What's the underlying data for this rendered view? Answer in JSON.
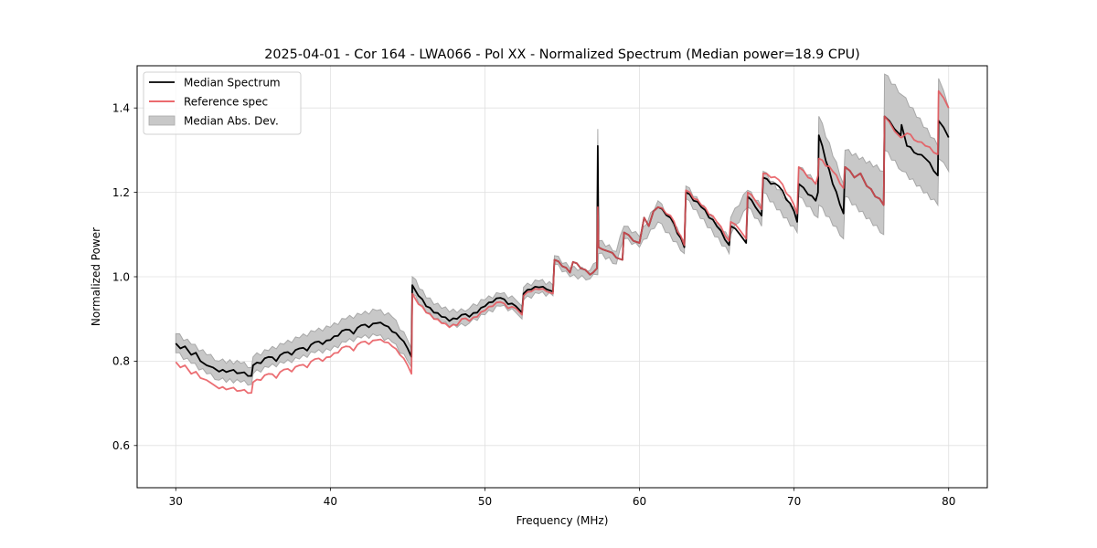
{
  "chart_data": {
    "type": "line",
    "title": "2025-04-01 - Cor 164 - LWA066 - Pol XX - Normalized Spectrum (Median power=18.9 CPU)",
    "xlabel": "Frequency (MHz)",
    "ylabel": "Normalized Power",
    "xlim": [
      27.5,
      82.5
    ],
    "ylim": [
      0.5,
      1.5
    ],
    "xticks": [
      30,
      40,
      50,
      60,
      70,
      80
    ],
    "xtick_labels": [
      "30",
      "40",
      "50",
      "60",
      "70",
      "80"
    ],
    "yticks": [
      0.6,
      0.8,
      1.0,
      1.2,
      1.4
    ],
    "ytick_labels": [
      "0.6",
      "0.8",
      "1.0",
      "1.2",
      "1.4"
    ],
    "grid": true,
    "legend": {
      "placement": "top-left",
      "entries": [
        {
          "label": "Median Spectrum",
          "kind": "line",
          "color": "#000000"
        },
        {
          "label": "Reference spec",
          "kind": "line",
          "color": "#e8555a"
        },
        {
          "label": "Median Abs. Dev.",
          "kind": "fill",
          "color": "#c8c8c8"
        }
      ]
    },
    "colors": {
      "median": "#000000",
      "reference": "#e8555a",
      "overlap": "#8b0000",
      "mad_fill": "#c8c8c8",
      "mad_edge": "#a8a8a8",
      "grid": "#e0e0e0"
    },
    "series": [
      {
        "name": "Median Spectrum",
        "x": [
          30.0,
          30.3,
          30.6,
          31.0,
          31.3,
          31.6,
          32.0,
          32.4,
          32.8,
          33.5,
          34.2,
          34.9,
          35.0,
          35.5,
          36.0,
          36.5,
          37.0,
          37.5,
          38.0,
          38.5,
          39.0,
          39.5,
          40.0,
          40.5,
          41.0,
          41.5,
          42.0,
          42.5,
          43.0,
          43.5,
          44.0,
          44.5,
          45.0,
          45.25,
          45.3,
          45.7,
          46.2,
          46.7,
          47.2,
          47.7,
          48.2,
          48.5,
          49.0,
          49.5,
          50.0,
          50.5,
          51.0,
          51.5,
          52.0,
          52.4,
          52.5,
          53.0,
          53.5,
          54.0,
          54.4,
          54.5,
          55.0,
          55.5,
          55.7,
          56.2,
          56.8,
          57.0,
          57.25,
          57.3,
          57.35,
          57.6,
          58.0,
          58.5,
          58.9,
          59.0,
          59.6,
          60.0,
          60.3,
          60.6,
          60.9,
          61.2,
          62.0,
          62.9,
          63.0,
          64.0,
          65.0,
          65.8,
          65.9,
          66.5,
          66.9,
          67.0,
          67.5,
          67.9,
          68.0,
          68.5,
          69.0,
          70.0,
          70.2,
          70.3,
          70.9,
          71.4,
          71.55,
          71.6,
          72.5,
          73.2,
          73.3,
          73.9,
          74.3,
          74.7,
          75.8,
          75.85,
          76.5,
          76.9,
          76.95,
          77.3,
          78.0,
          78.5,
          79.3,
          79.35,
          80.0
        ],
        "values": [
          0.842,
          0.83,
          0.835,
          0.815,
          0.82,
          0.8,
          0.79,
          0.785,
          0.775,
          0.777,
          0.772,
          0.765,
          0.79,
          0.795,
          0.81,
          0.8,
          0.82,
          0.815,
          0.83,
          0.825,
          0.845,
          0.84,
          0.85,
          0.86,
          0.875,
          0.865,
          0.885,
          0.88,
          0.89,
          0.885,
          0.87,
          0.855,
          0.83,
          0.81,
          0.98,
          0.955,
          0.93,
          0.915,
          0.905,
          0.895,
          0.9,
          0.91,
          0.905,
          0.915,
          0.93,
          0.94,
          0.95,
          0.935,
          0.93,
          0.915,
          0.96,
          0.97,
          0.975,
          0.97,
          0.965,
          1.04,
          1.025,
          1.01,
          1.035,
          1.02,
          1.005,
          1.01,
          1.02,
          1.31,
          1.07,
          1.065,
          1.06,
          1.045,
          1.04,
          1.105,
          1.085,
          1.08,
          1.14,
          1.12,
          1.155,
          1.165,
          1.14,
          1.07,
          1.2,
          1.165,
          1.12,
          1.075,
          1.12,
          1.1,
          1.08,
          1.19,
          1.165,
          1.145,
          1.235,
          1.22,
          1.215,
          1.155,
          1.13,
          1.22,
          1.195,
          1.18,
          1.2,
          1.335,
          1.22,
          1.15,
          1.26,
          1.235,
          1.245,
          1.215,
          1.17,
          1.38,
          1.35,
          1.335,
          1.36,
          1.31,
          1.29,
          1.28,
          1.24,
          1.37,
          1.33
        ]
      },
      {
        "name": "Reference spec",
        "x": [
          30.0,
          30.3,
          30.6,
          31.0,
          31.3,
          31.6,
          32.0,
          32.4,
          32.8,
          33.5,
          34.2,
          34.9,
          35.0,
          35.5,
          36.0,
          36.5,
          37.0,
          37.5,
          38.0,
          38.5,
          39.0,
          39.5,
          40.0,
          40.5,
          41.0,
          41.5,
          42.0,
          42.5,
          43.0,
          43.5,
          44.0,
          44.5,
          45.0,
          45.25,
          45.3,
          45.7,
          46.2,
          46.7,
          47.2,
          47.7,
          48.2,
          48.5,
          49.0,
          49.5,
          50.0,
          50.5,
          51.0,
          51.5,
          52.0,
          52.4,
          52.5,
          53.0,
          53.5,
          54.0,
          54.4,
          54.5,
          55.0,
          55.5,
          55.7,
          56.2,
          56.8,
          57.0,
          57.25,
          57.3,
          57.35,
          57.6,
          58.0,
          58.5,
          58.9,
          59.0,
          59.6,
          60.0,
          60.3,
          60.6,
          60.9,
          61.2,
          62.0,
          62.9,
          63.0,
          64.0,
          65.0,
          65.8,
          65.9,
          66.5,
          66.9,
          67.0,
          67.5,
          67.9,
          68.0,
          68.5,
          69.0,
          70.0,
          70.2,
          70.3,
          70.9,
          71.4,
          71.55,
          71.6,
          72.5,
          73.2,
          73.3,
          73.9,
          74.3,
          74.7,
          75.8,
          75.85,
          76.5,
          76.9,
          76.95,
          77.3,
          78.0,
          78.5,
          79.3,
          79.35,
          80.0
        ],
        "values": [
          0.798,
          0.785,
          0.79,
          0.77,
          0.775,
          0.76,
          0.755,
          0.745,
          0.735,
          0.735,
          0.73,
          0.725,
          0.75,
          0.755,
          0.77,
          0.76,
          0.78,
          0.775,
          0.79,
          0.785,
          0.805,
          0.8,
          0.81,
          0.82,
          0.835,
          0.825,
          0.845,
          0.84,
          0.85,
          0.845,
          0.835,
          0.815,
          0.79,
          0.77,
          0.96,
          0.935,
          0.915,
          0.9,
          0.89,
          0.88,
          0.885,
          0.9,
          0.895,
          0.905,
          0.92,
          0.93,
          0.94,
          0.925,
          0.925,
          0.91,
          0.955,
          0.965,
          0.97,
          0.965,
          0.96,
          1.04,
          1.025,
          1.01,
          1.035,
          1.02,
          1.005,
          1.01,
          1.02,
          1.165,
          1.07,
          1.065,
          1.06,
          1.045,
          1.04,
          1.105,
          1.085,
          1.08,
          1.14,
          1.12,
          1.155,
          1.165,
          1.145,
          1.075,
          1.205,
          1.17,
          1.13,
          1.085,
          1.13,
          1.11,
          1.09,
          1.2,
          1.18,
          1.16,
          1.245,
          1.235,
          1.23,
          1.17,
          1.15,
          1.26,
          1.235,
          1.22,
          1.24,
          1.28,
          1.25,
          1.21,
          1.26,
          1.235,
          1.245,
          1.215,
          1.17,
          1.38,
          1.345,
          1.33,
          1.33,
          1.34,
          1.32,
          1.31,
          1.29,
          1.44,
          1.4
        ]
      }
    ],
    "mad_band": {
      "name": "Median Abs. Dev.",
      "x": [
        30.0,
        31.0,
        32.0,
        32.8,
        34.2,
        34.9,
        35.0,
        36.0,
        37.0,
        38.0,
        39.0,
        40.0,
        41.0,
        42.0,
        43.0,
        44.0,
        45.0,
        45.25,
        45.3,
        46.2,
        47.2,
        48.2,
        49.0,
        50.0,
        51.0,
        52.0,
        52.4,
        52.5,
        53.5,
        54.4,
        54.5,
        55.5,
        56.8,
        57.25,
        57.3,
        57.35,
        58.5,
        59.0,
        60.0,
        61.2,
        62.9,
        63.0,
        65.8,
        65.9,
        67.0,
        67.9,
        68.0,
        70.2,
        70.3,
        71.55,
        71.6,
        73.2,
        73.3,
        75.8,
        75.85,
        77.0,
        79.3,
        79.35,
        80.0
      ],
      "lower": [
        0.82,
        0.795,
        0.77,
        0.755,
        0.75,
        0.745,
        0.77,
        0.785,
        0.795,
        0.805,
        0.82,
        0.825,
        0.845,
        0.855,
        0.86,
        0.845,
        0.8,
        0.785,
        0.96,
        0.915,
        0.89,
        0.88,
        0.89,
        0.91,
        0.93,
        0.915,
        0.9,
        0.945,
        0.96,
        0.955,
        1.03,
        1.0,
        0.995,
        1.005,
        1.005,
        1.055,
        1.03,
        1.09,
        1.07,
        1.13,
        1.055,
        1.185,
        1.055,
        1.1,
        1.165,
        1.12,
        1.2,
        1.105,
        1.19,
        1.14,
        1.17,
        1.09,
        1.19,
        1.1,
        1.3,
        1.25,
        1.17,
        1.28,
        1.25
      ],
      "upper": [
        0.865,
        0.84,
        0.815,
        0.8,
        0.795,
        0.785,
        0.81,
        0.825,
        0.84,
        0.855,
        0.87,
        0.88,
        0.9,
        0.91,
        0.92,
        0.905,
        0.85,
        0.83,
        1.0,
        0.95,
        0.925,
        0.915,
        0.925,
        0.945,
        0.96,
        0.945,
        0.93,
        0.975,
        0.99,
        0.98,
        1.05,
        1.02,
        1.015,
        1.035,
        1.35,
        1.085,
        1.06,
        1.12,
        1.095,
        1.18,
        1.085,
        1.215,
        1.09,
        1.14,
        1.205,
        1.165,
        1.25,
        1.15,
        1.26,
        1.22,
        1.38,
        1.22,
        1.3,
        1.25,
        1.48,
        1.43,
        1.31,
        1.47,
        1.4
      ]
    }
  }
}
